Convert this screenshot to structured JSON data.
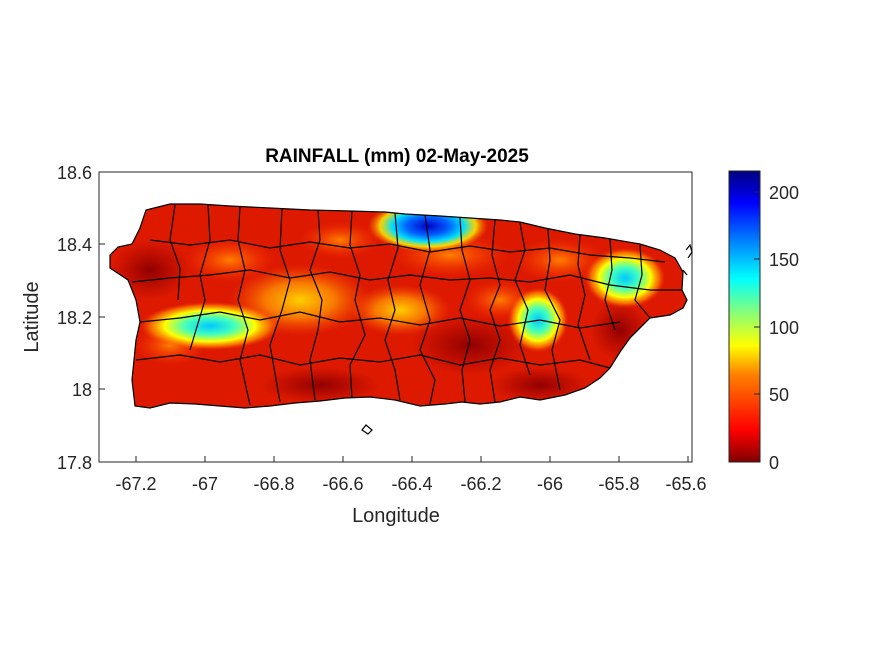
{
  "title": "RAINFALL (mm) 02-May-2025",
  "axes": {
    "xlabel": "Longitude",
    "ylabel": "Latitude",
    "xticks": [
      "-67.2",
      "-67",
      "-66.8",
      "-66.6",
      "-66.4",
      "-66.2",
      "-66",
      "-65.8",
      "-65.6"
    ],
    "yticks": [
      "18.6",
      "18.4",
      "18.2",
      "18",
      "17.8"
    ],
    "xlim": [
      -67.3,
      -65.58
    ],
    "ylim": [
      17.8,
      18.6
    ]
  },
  "colorbar": {
    "colormap": "jet (reversed)",
    "ticks": [
      "200",
      "150",
      "100",
      "50",
      "0"
    ],
    "range": [
      0,
      215
    ],
    "colors": [
      "#800000",
      "#ff0000",
      "#ff8000",
      "#ffff00",
      "#80ff80",
      "#00ffff",
      "#0080ff",
      "#0000ff",
      "#000080"
    ]
  },
  "chart_data": {
    "type": "heatmap",
    "title": "RAINFALL (mm) 02-May-2025",
    "xlabel": "Longitude",
    "ylabel": "Latitude",
    "xlim": [
      -67.3,
      -65.58
    ],
    "ylim": [
      17.8,
      18.6
    ],
    "value_range": [
      0,
      215
    ],
    "grid": false,
    "hotspots": [
      {
        "lon": -66.37,
        "lat": 18.46,
        "value": 210
      },
      {
        "lon": -66.03,
        "lat": 18.19,
        "value": 140
      },
      {
        "lon": -66.98,
        "lat": 18.16,
        "value": 130
      },
      {
        "lon": -65.8,
        "lat": 18.3,
        "value": 130
      },
      {
        "lon": -66.75,
        "lat": 18.28,
        "value": 75
      },
      {
        "lon": -66.5,
        "lat": 18.22,
        "value": 60
      }
    ]
  }
}
